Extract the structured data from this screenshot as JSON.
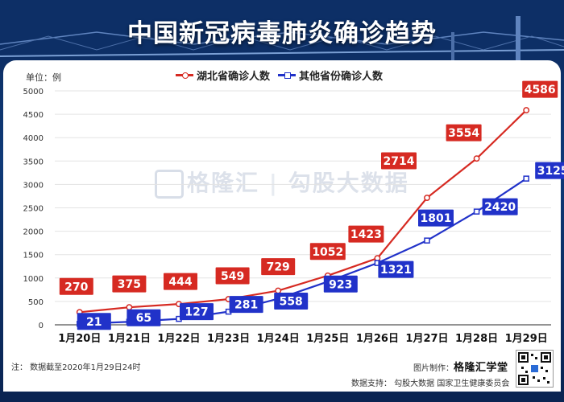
{
  "title": "中国新冠病毒肺炎确诊趋势",
  "unit_label": "单位：例",
  "note": "注：  数据截至2020年1月29日24时",
  "credit_prefix": "图片制作：",
  "credit_brand": "格隆汇学堂",
  "support": "数据支持：  勾股大数据  国家卫生健康委员会",
  "watermark": {
    "brand": "格隆汇",
    "partner": "勾股大数据"
  },
  "colors": {
    "hubei": "#d62a22",
    "others": "#2132c9",
    "grid": "#e3e3e3"
  },
  "chart_data": {
    "type": "line",
    "title": "中国新冠病毒肺炎确诊趋势",
    "xlabel": "",
    "ylabel": "单位：例",
    "categories": [
      "1月20日",
      "1月21日",
      "1月22日",
      "1月23日",
      "1月24日",
      "1月25日",
      "1月26日",
      "1月27日",
      "1月28日",
      "1月29日"
    ],
    "yticks": [
      0,
      500,
      1000,
      1500,
      2000,
      2500,
      3000,
      3500,
      4000,
      4500,
      5000
    ],
    "ylim": [
      0,
      5000
    ],
    "legend": "top",
    "series": [
      {
        "name": "湖北省确诊人数",
        "color": "#d62a22",
        "marker": "circle",
        "values": [
          270,
          375,
          444,
          549,
          729,
          1052,
          1423,
          2714,
          3554,
          4586
        ]
      },
      {
        "name": "其他省份确诊人数",
        "color": "#2132c9",
        "marker": "square",
        "values": [
          21,
          65,
          127,
          281,
          558,
          923,
          1321,
          1801,
          2420,
          3125
        ]
      }
    ]
  }
}
